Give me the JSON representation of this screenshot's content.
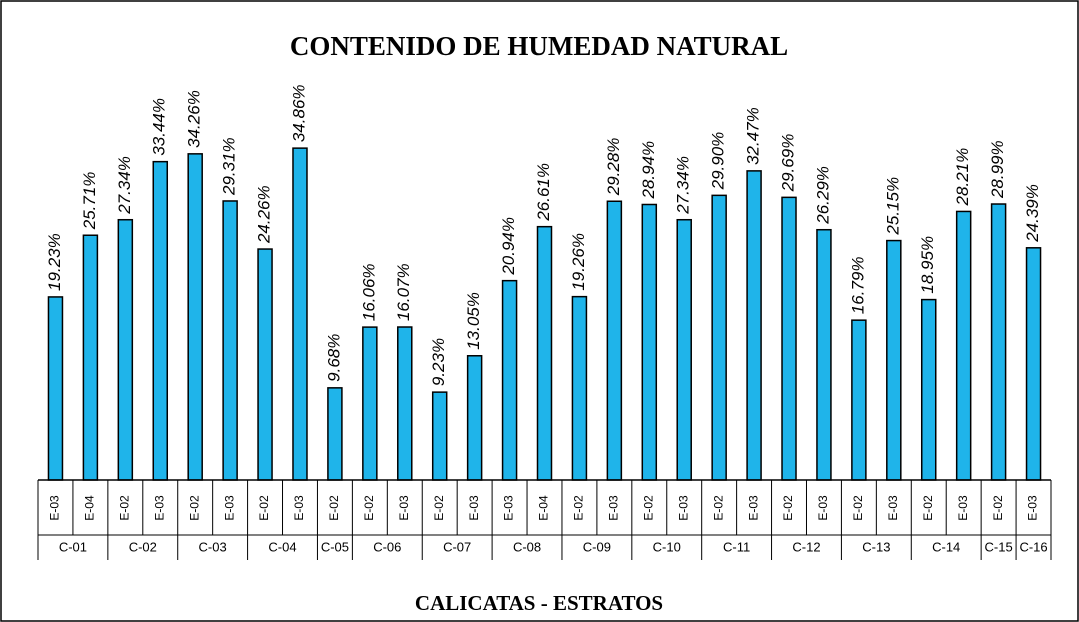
{
  "chart_data": {
    "type": "bar",
    "title": "CONTENIDO DE HUMEDAD NATURAL",
    "x_label": "CALICATAS - ESTRATOS",
    "color": "#1fb4ea",
    "ylim": [
      0,
      41
    ],
    "groups": [
      {
        "label": "C-01",
        "categories": [
          "E-03",
          "E-04"
        ],
        "values": [
          19.23,
          25.71
        ],
        "value_labels": [
          "19.23%",
          "25.71%"
        ]
      },
      {
        "label": "C-02",
        "categories": [
          "E-02",
          "E-03"
        ],
        "values": [
          27.34,
          33.44
        ],
        "value_labels": [
          "27.34%",
          "33.44%"
        ]
      },
      {
        "label": "C-03",
        "categories": [
          "E-02",
          "E-03"
        ],
        "values": [
          34.26,
          29.31
        ],
        "value_labels": [
          "34.26%",
          "29.31%"
        ]
      },
      {
        "label": "C-04",
        "categories": [
          "E-02",
          "E-03"
        ],
        "values": [
          24.26,
          34.86
        ],
        "value_labels": [
          "24.26%",
          "34.86%"
        ]
      },
      {
        "label": "C-05",
        "categories": [
          "E-02"
        ],
        "values": [
          9.68
        ],
        "value_labels": [
          "9.68%"
        ]
      },
      {
        "label": "C-06",
        "categories": [
          "E-02",
          "E-03"
        ],
        "values": [
          16.06,
          16.07
        ],
        "value_labels": [
          "16.06%",
          "16.07%"
        ]
      },
      {
        "label": "C-07",
        "categories": [
          "E-02",
          "E-03"
        ],
        "values": [
          9.23,
          13.05
        ],
        "value_labels": [
          "9.23%",
          "13.05%"
        ]
      },
      {
        "label": "C-08",
        "categories": [
          "E-03",
          "E-04"
        ],
        "values": [
          20.94,
          26.61
        ],
        "value_labels": [
          "20.94%",
          "26.61%"
        ]
      },
      {
        "label": "C-09",
        "categories": [
          "E-02",
          "E-03"
        ],
        "values": [
          19.26,
          29.28
        ],
        "value_labels": [
          "19.26%",
          "29.28%"
        ]
      },
      {
        "label": "C-10",
        "categories": [
          "E-02",
          "E-03"
        ],
        "values": [
          28.94,
          27.34
        ],
        "value_labels": [
          "28.94%",
          "27.34%"
        ]
      },
      {
        "label": "C-11",
        "categories": [
          "E-02",
          "E-03"
        ],
        "values": [
          29.9,
          32.47
        ],
        "value_labels": [
          "29.90%",
          "32.47%"
        ]
      },
      {
        "label": "C-12",
        "categories": [
          "E-02",
          "E-03"
        ],
        "values": [
          29.69,
          26.29
        ],
        "value_labels": [
          "29.69%",
          "26.29%"
        ]
      },
      {
        "label": "C-13",
        "categories": [
          "E-02",
          "E-03"
        ],
        "values": [
          16.79,
          25.15
        ],
        "value_labels": [
          "16.79%",
          "25.15%"
        ]
      },
      {
        "label": "C-14",
        "categories": [
          "E-02",
          "E-03"
        ],
        "values": [
          18.95,
          28.21
        ],
        "value_labels": [
          "18.95%",
          "28.21%"
        ]
      },
      {
        "label": "C-15",
        "categories": [
          "E-02"
        ],
        "values": [
          28.99
        ],
        "value_labels": [
          "28.99%"
        ]
      },
      {
        "label": "C-16",
        "categories": [
          "E-03"
        ],
        "values": [
          24.39
        ],
        "value_labels": [
          "24.39%"
        ]
      }
    ]
  }
}
